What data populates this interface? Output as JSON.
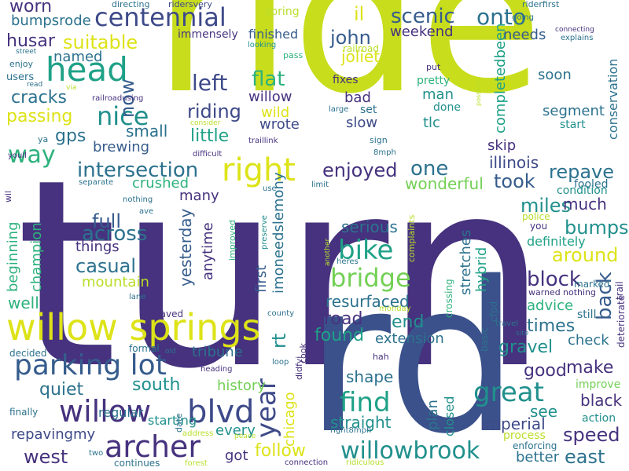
{
  "palette": {
    "dark_purple": "#46327e",
    "indigo": "#3e4a89",
    "blue": "#365c8d",
    "steel": "#2c728e",
    "teal": "#21908d",
    "sea_green": "#1fa187",
    "green": "#2db27d",
    "lime": "#73d055",
    "yellow_green": "#b8de29",
    "yellow": "#dde318"
  },
  "words": [
    {
      "text": "turn",
      "color": "#46327e"
    },
    {
      "text": "ride",
      "color": "#c8dd1c"
    },
    {
      "text": "rd",
      "color": "#3b518b"
    },
    {
      "text": "willow springs",
      "color": "#dde318"
    },
    {
      "text": "head",
      "color": "#1fa187"
    },
    {
      "text": "centennial",
      "color": "#3e4a89"
    },
    {
      "text": "parking lot",
      "color": "#365c8d"
    },
    {
      "text": "willow",
      "color": "#46327e"
    },
    {
      "text": "blvd",
      "color": "#3e4a89"
    },
    {
      "text": "archer",
      "color": "#46327e"
    },
    {
      "text": "willowbrook",
      "color": "#21908d"
    },
    {
      "text": "right",
      "color": "#dde318"
    },
    {
      "text": "bridge",
      "color": "#73d055"
    },
    {
      "text": "bike",
      "color": "#1fa187"
    },
    {
      "text": "find",
      "color": "#1fa187"
    },
    {
      "text": "year",
      "color": "#3e4a89"
    },
    {
      "text": "nice",
      "color": "#21908d"
    },
    {
      "text": "great",
      "color": "#21908d"
    },
    {
      "text": "intersection",
      "color": "#2c728e"
    },
    {
      "text": "suitable",
      "color": "#dde318"
    },
    {
      "text": "way",
      "color": "#2db27d"
    },
    {
      "text": "left",
      "color": "#3e4a89"
    },
    {
      "text": "riding",
      "color": "#3e4a89"
    },
    {
      "text": "flat",
      "color": "#2db27d"
    },
    {
      "text": "scenic",
      "color": "#365c8d"
    },
    {
      "text": "onto",
      "color": "#2c728e"
    },
    {
      "text": "john",
      "color": "#365c8d"
    },
    {
      "text": "husar",
      "color": "#46327e"
    },
    {
      "text": "worn",
      "color": "#46327e"
    },
    {
      "text": "bumpsrode",
      "color": "#2c728e"
    },
    {
      "text": "named",
      "color": "#2c728e"
    },
    {
      "text": "now",
      "color": "#365c8d"
    },
    {
      "text": "cracks",
      "color": "#2c728e"
    },
    {
      "text": "passing",
      "color": "#dde318"
    },
    {
      "text": "gps",
      "color": "#2c728e"
    },
    {
      "text": "small",
      "color": "#2c728e"
    },
    {
      "text": "little",
      "color": "#1fa187"
    },
    {
      "text": "brewing",
      "color": "#365c8d"
    },
    {
      "text": "enjoyed",
      "color": "#46327e"
    },
    {
      "text": "one",
      "color": "#2c728e"
    },
    {
      "text": "illinois",
      "color": "#3e4a89"
    },
    {
      "text": "took",
      "color": "#365c8d"
    },
    {
      "text": "repave",
      "color": "#2c728e"
    },
    {
      "text": "wonderful",
      "color": "#73d055"
    },
    {
      "text": "crushed",
      "color": "#2db27d"
    },
    {
      "text": "many",
      "color": "#46327e"
    },
    {
      "text": "full",
      "color": "#365c8d"
    },
    {
      "text": "across",
      "color": "#2c728e"
    },
    {
      "text": "casual",
      "color": "#2c728e"
    },
    {
      "text": "things",
      "color": "#46327e"
    },
    {
      "text": "mountain",
      "color": "#b8de29"
    },
    {
      "text": "champion",
      "color": "#2db27d"
    },
    {
      "text": "beginning",
      "color": "#2db27d"
    },
    {
      "text": "well",
      "color": "#2db27d"
    },
    {
      "text": "yesterday",
      "color": "#365c8d"
    },
    {
      "text": "anytime",
      "color": "#46327e"
    },
    {
      "text": "first",
      "color": "#365c8d"
    },
    {
      "text": "imoneedslemony",
      "color": "#2c728e"
    },
    {
      "text": "serious",
      "color": "#2c728e"
    },
    {
      "text": "stretches",
      "color": "#2c728e"
    },
    {
      "text": "hybrid",
      "color": "#1fa187"
    },
    {
      "text": "miles",
      "color": "#21908d"
    },
    {
      "text": "much",
      "color": "#46327e"
    },
    {
      "text": "bumps",
      "color": "#21908d"
    },
    {
      "text": "around",
      "color": "#dde318"
    },
    {
      "text": "block",
      "color": "#46327e"
    },
    {
      "text": "back",
      "color": "#365c8d"
    },
    {
      "text": "resurfaced",
      "color": "#2c728e"
    },
    {
      "text": "road",
      "color": "#46327e"
    },
    {
      "text": "end",
      "color": "#21908d"
    },
    {
      "text": "found",
      "color": "#1fa187"
    },
    {
      "text": "extension",
      "color": "#2c728e"
    },
    {
      "text": "times",
      "color": "#2c728e"
    },
    {
      "text": "gravel",
      "color": "#21908d"
    },
    {
      "text": "advice",
      "color": "#2db27d"
    },
    {
      "text": "check",
      "color": "#2c728e"
    },
    {
      "text": "tribune",
      "color": "#2c728e"
    },
    {
      "text": "s",
      "color": "#46327e"
    },
    {
      "text": "rt",
      "color": "#21908d"
    },
    {
      "text": "chicago",
      "color": "#dde318"
    },
    {
      "text": "history",
      "color": "#73d055"
    },
    {
      "text": "south",
      "color": "#21908d"
    },
    {
      "text": "quiet",
      "color": "#2c728e"
    },
    {
      "text": "regular",
      "color": "#2c728e"
    },
    {
      "text": "repavingmy",
      "color": "#3e4a89"
    },
    {
      "text": "west",
      "color": "#46327e"
    },
    {
      "text": "starting",
      "color": "#21908d"
    },
    {
      "text": "every",
      "color": "#21908d"
    },
    {
      "text": "got",
      "color": "#46327e"
    },
    {
      "text": "follow",
      "color": "#dde318"
    },
    {
      "text": "straight",
      "color": "#21908d"
    },
    {
      "text": "shape",
      "color": "#2c728e"
    },
    {
      "text": "plan",
      "color": "#2c728e"
    },
    {
      "text": "closed",
      "color": "#21908d"
    },
    {
      "text": "imperial",
      "color": "#3e4a89"
    },
    {
      "text": "good",
      "color": "#46327e"
    },
    {
      "text": "make",
      "color": "#46327e"
    },
    {
      "text": "see",
      "color": "#21908d"
    },
    {
      "text": "black",
      "color": "#46327e"
    },
    {
      "text": "speed",
      "color": "#46327e"
    },
    {
      "text": "east",
      "color": "#2c728e"
    },
    {
      "text": "better",
      "color": "#2c728e"
    },
    {
      "text": "process",
      "color": "#b8de29"
    },
    {
      "text": "enforcing",
      "color": "#2c728e"
    },
    {
      "text": "action",
      "color": "#21908d"
    },
    {
      "text": "improve",
      "color": "#73d055"
    },
    {
      "text": "deteriorate",
      "color": "#46327e"
    },
    {
      "text": "trail",
      "color": "#46327e"
    },
    {
      "text": "still",
      "color": "#2c728e"
    },
    {
      "text": "marked",
      "color": "#2c728e"
    },
    {
      "text": "warned",
      "color": "#46327e"
    },
    {
      "text": "nothing",
      "color": "#46327e"
    },
    {
      "text": "police",
      "color": "#b8de29"
    },
    {
      "text": "you",
      "color": "#46327e"
    },
    {
      "text": "fooled",
      "color": "#2c728e"
    },
    {
      "text": "condition",
      "color": "#21908d"
    },
    {
      "text": "definitely",
      "color": "#1fa187"
    },
    {
      "text": "skip",
      "color": "#46327e"
    },
    {
      "text": "completedbeen",
      "color": "#1fa187"
    },
    {
      "text": "conservation",
      "color": "#2c728e"
    },
    {
      "text": "segment",
      "color": "#2c728e"
    },
    {
      "text": "start",
      "color": "#21908d"
    },
    {
      "text": "soon",
      "color": "#2c728e"
    },
    {
      "text": "needs",
      "color": "#365c8d"
    },
    {
      "text": "il",
      "color": "#dde318"
    },
    {
      "text": "weekend",
      "color": "#46327e"
    },
    {
      "text": "joliet",
      "color": "#dde318"
    },
    {
      "text": "railroad",
      "color": "#b8de29"
    },
    {
      "text": "man",
      "color": "#21908d"
    },
    {
      "text": "pretty",
      "color": "#2db27d"
    },
    {
      "text": "done",
      "color": "#21908d"
    },
    {
      "text": "tlc",
      "color": "#21908d"
    },
    {
      "text": "bad",
      "color": "#46327e"
    },
    {
      "text": "fixes",
      "color": "#46327e"
    },
    {
      "text": "set",
      "color": "#2c728e"
    },
    {
      "text": "slow",
      "color": "#3e4a89"
    },
    {
      "text": "wild",
      "color": "#dde318"
    },
    {
      "text": "wrote",
      "color": "#3e4a89"
    },
    {
      "text": "finished",
      "color": "#365c8d"
    },
    {
      "text": "immensely",
      "color": "#46327e"
    },
    {
      "text": "spring",
      "color": "#b8de29"
    },
    {
      "text": "pass",
      "color": "#2db27d"
    },
    {
      "text": "looking",
      "color": "#21908d"
    },
    {
      "text": "directing",
      "color": "#2c728e"
    },
    {
      "text": "ridersvery",
      "color": "#3e4a89"
    },
    {
      "text": "riderfirst",
      "color": "#2c728e"
    },
    {
      "text": "going",
      "color": "#2c728e"
    },
    {
      "text": "connecting",
      "color": "#46327e"
    },
    {
      "text": "explains",
      "color": "#2c728e"
    },
    {
      "text": "street",
      "color": "#2c728e"
    },
    {
      "text": "enjoy",
      "color": "#2c728e"
    },
    {
      "text": "via",
      "color": "#b8de29"
    },
    {
      "text": "users",
      "color": "#2c728e"
    },
    {
      "text": "read",
      "color": "#2c728e"
    },
    {
      "text": "railroadusing",
      "color": "#46327e"
    },
    {
      "text": "consider",
      "color": "#b8de29"
    },
    {
      "text": "traillink",
      "color": "#46327e"
    },
    {
      "text": "difficult",
      "color": "#46327e"
    },
    {
      "text": "youll",
      "color": "#46327e"
    },
    {
      "text": "ya",
      "color": "#2c728e"
    },
    {
      "text": "sign",
      "color": "#2c728e"
    },
    {
      "text": "8mph",
      "color": "#2c728e"
    },
    {
      "text": "separate",
      "color": "#2c728e"
    },
    {
      "text": "wil",
      "color": "#46327e"
    },
    {
      "text": "nothing",
      "color": "#2c728e"
    },
    {
      "text": "use",
      "color": "#2c728e"
    },
    {
      "text": "limit",
      "color": "#2c728e"
    },
    {
      "text": "ave",
      "color": "#2c728e"
    },
    {
      "text": "improved",
      "color": "#2db27d"
    },
    {
      "text": "preserve",
      "color": "#21908d"
    },
    {
      "text": "complaints",
      "color": "#b8de29"
    },
    {
      "text": "another",
      "color": "#b8de29"
    },
    {
      "text": "heres",
      "color": "#2c728e"
    },
    {
      "text": "lane",
      "color": "#2c728e"
    },
    {
      "text": "repaved",
      "color": "#46327e"
    },
    {
      "text": "formal",
      "color": "#2c728e"
    },
    {
      "text": "county",
      "color": "#2c728e"
    },
    {
      "text": "monday",
      "color": "#b8de29"
    },
    {
      "text": "crossing",
      "color": "#2db27d"
    },
    {
      "text": "basic",
      "color": "#2c728e"
    },
    {
      "text": "cfpd",
      "color": "#2c728e"
    },
    {
      "text": "hah",
      "color": "#46327e"
    },
    {
      "text": "travel",
      "color": "#2c728e"
    },
    {
      "text": "site",
      "color": "#2c728e"
    },
    {
      "text": "decided",
      "color": "#2c728e"
    },
    {
      "text": "old",
      "color": "#2c728e"
    },
    {
      "text": "heading",
      "color": "#46327e"
    },
    {
      "text": "loop",
      "color": "#2c728e"
    },
    {
      "text": "didfyi",
      "color": "#46327e"
    },
    {
      "text": "cook",
      "color": "#46327e"
    },
    {
      "text": "finally",
      "color": "#2c728e"
    },
    {
      "text": "date",
      "color": "#2c728e"
    },
    {
      "text": "address",
      "color": "#b8de29"
    },
    {
      "text": "right8mph",
      "color": "#2c728e"
    },
    {
      "text": "two",
      "color": "#2c728e"
    },
    {
      "text": "continues",
      "color": "#2c728e"
    },
    {
      "text": "forest",
      "color": "#b8de29"
    },
    {
      "text": "peace",
      "color": "#b8de29"
    },
    {
      "text": "connection",
      "color": "#46327e"
    },
    {
      "text": "ridiculous",
      "color": "#b8de29"
    },
    {
      "text": "large",
      "color": "#2c728e"
    },
    {
      "text": "put",
      "color": "#46327e"
    },
    {
      "text": "possible",
      "color": "#b8de29"
    }
  ]
}
